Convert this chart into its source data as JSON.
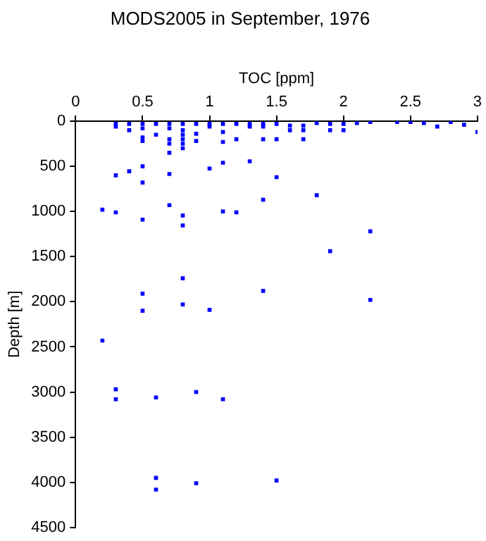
{
  "chart_data": {
    "type": "scatter",
    "title": "MODS2005 in September, 1976",
    "xlabel": "TOC [ppm]",
    "ylabel": "Depth [m]",
    "xlim": [
      0,
      3
    ],
    "xticks": [
      0,
      0.5,
      1,
      1.5,
      2,
      2.5,
      3
    ],
    "ylim": [
      4500,
      0
    ],
    "yticks": [
      0,
      500,
      1000,
      1500,
      2000,
      2500,
      3000,
      3500,
      4000,
      4500
    ],
    "grid": false,
    "legend": false,
    "marker": "square",
    "series": [
      {
        "color": "#0000ff",
        "x": [
          0.3,
          0.3,
          0.4,
          0.4,
          0.5,
          0.5,
          0.5,
          0.5,
          0.6,
          0.6,
          0.7,
          0.7,
          0.7,
          0.7,
          0.7,
          0.8,
          0.8,
          0.8,
          0.8,
          0.8,
          0.8,
          0.9,
          0.9,
          0.9,
          1.0,
          1.0,
          1.1,
          1.1,
          1.1,
          1.2,
          1.2,
          1.3,
          1.3,
          1.4,
          1.4,
          1.4,
          1.5,
          1.5,
          1.6,
          1.6,
          1.7,
          1.7,
          1.7,
          1.8,
          1.9,
          1.9,
          2.0,
          2.0,
          2.1,
          2.2,
          2.4,
          2.5,
          2.6,
          2.7,
          2.8,
          2.9,
          3.0,
          0.3,
          0.4,
          0.5,
          0.5,
          0.7,
          1.0,
          1.1,
          1.3,
          1.5,
          1.8,
          0.2,
          0.3,
          0.5,
          0.7,
          0.8,
          0.8,
          1.1,
          1.2,
          1.4,
          2.2,
          1.9,
          0.5,
          0.5,
          0.8,
          0.8,
          1.0,
          1.4,
          2.2,
          0.2,
          0.3,
          0.3,
          0.6,
          0.9,
          1.1,
          0.6,
          0.6,
          0.9,
          1.5
        ],
        "values": [
          30,
          60,
          30,
          100,
          30,
          80,
          180,
          220,
          30,
          150,
          30,
          80,
          200,
          250,
          350,
          30,
          100,
          150,
          200,
          250,
          300,
          30,
          140,
          220,
          30,
          60,
          30,
          120,
          230,
          30,
          200,
          30,
          60,
          30,
          60,
          200,
          30,
          200,
          50,
          100,
          50,
          100,
          200,
          20,
          30,
          100,
          30,
          100,
          20,
          10,
          10,
          10,
          20,
          60,
          10,
          40,
          120,
          600,
          555,
          500,
          680,
          585,
          525,
          460,
          445,
          620,
          820,
          980,
          1010,
          1090,
          930,
          1045,
          1155,
          1000,
          1010,
          870,
          1220,
          1440,
          1910,
          2100,
          1740,
          2030,
          2090,
          1880,
          1980,
          2430,
          2970,
          3080,
          3060,
          3000,
          3080,
          3950,
          4080,
          4010,
          3980
        ]
      }
    ]
  }
}
